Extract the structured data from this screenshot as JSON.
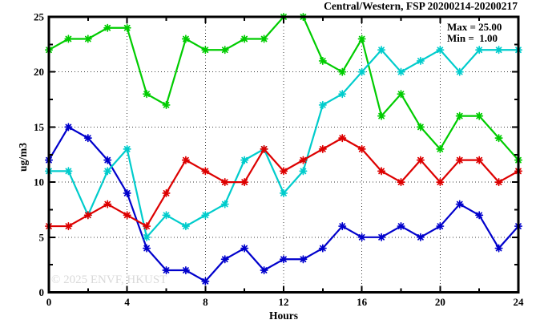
{
  "watermark": "© 2025 ENVF, HKUST",
  "chart_data": {
    "type": "line",
    "title": "Central/Western, FSP 20200214-20200217",
    "xlabel": "Hours",
    "ylabel": "ug/m3",
    "xlim": [
      0,
      24
    ],
    "ylim": [
      0,
      25
    ],
    "x_major_ticks": [
      0,
      4,
      8,
      12,
      16,
      20,
      24
    ],
    "x_minor_ticks": [
      2,
      6,
      10,
      14,
      18,
      22
    ],
    "y_major_ticks": [
      0,
      5,
      10,
      15,
      20,
      25
    ],
    "y_minor_ticks": [
      2.5,
      7.5,
      12.5,
      17.5,
      22.5
    ],
    "grid": "dotted lines at major ticks",
    "legend_position": "top-right inside plot",
    "annotations": {
      "max_label": "Max = 25.00",
      "min_label": "Min =  1.00",
      "max_value": 25.0,
      "min_value": 1.0
    },
    "x": [
      0,
      1,
      2,
      3,
      4,
      5,
      6,
      7,
      8,
      9,
      10,
      11,
      12,
      13,
      14,
      15,
      16,
      17,
      18,
      19,
      20,
      21,
      22,
      23,
      24
    ],
    "series": [
      {
        "name": "green-line",
        "color": "#00cc00",
        "values": [
          22,
          23,
          23,
          24,
          24,
          18,
          17,
          23,
          22,
          22,
          23,
          23,
          25,
          25,
          21,
          20,
          23,
          16,
          18,
          15,
          13,
          16,
          16,
          14,
          12
        ]
      },
      {
        "name": "blue-line",
        "color": "#0000cc",
        "values": [
          12,
          15,
          14,
          12,
          9,
          4,
          2,
          2,
          1,
          3,
          4,
          2,
          3,
          3,
          4,
          6,
          5,
          5,
          6,
          5,
          6,
          8,
          7,
          4,
          6
        ]
      },
      {
        "name": "cyan-line",
        "color": "#00cccc",
        "values": [
          11,
          11,
          7,
          11,
          13,
          5,
          7,
          6,
          7,
          8,
          12,
          13,
          9,
          11,
          17,
          18,
          20,
          22,
          20,
          21,
          22,
          20,
          22,
          22,
          22
        ]
      },
      {
        "name": "red-line",
        "color": "#dd0000",
        "values": [
          6,
          6,
          7,
          8,
          7,
          6,
          9,
          12,
          11,
          10,
          10,
          13,
          11,
          12,
          13,
          14,
          13,
          11,
          10,
          12,
          10,
          12,
          12,
          10,
          11
        ]
      }
    ]
  }
}
